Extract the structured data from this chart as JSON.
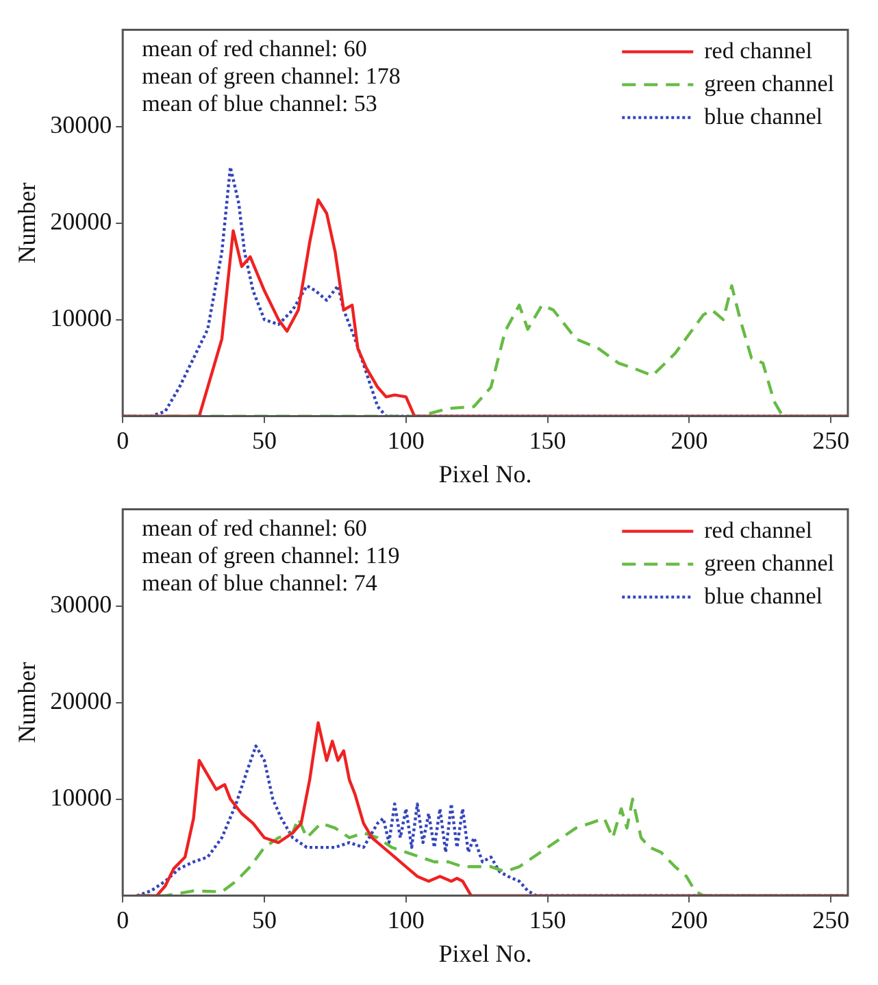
{
  "chart_data": [
    {
      "type": "line",
      "xlabel": "Pixel No.",
      "ylabel": "Number",
      "xlim": [
        0,
        256
      ],
      "ylim": [
        0,
        40000
      ],
      "xticks": [
        0,
        50,
        100,
        150,
        200,
        250
      ],
      "yticks": [
        10000,
        20000,
        30000
      ],
      "grid": false,
      "legend": "top right",
      "annotations": [
        "mean of red channel: 60",
        "mean of green channel: 178",
        "mean of blue channel: 53"
      ],
      "series": [
        {
          "name": "red channel",
          "color": "#ee2222",
          "line_style": "solid",
          "x": [
            0,
            27,
            30,
            35,
            39,
            42,
            45,
            50,
            55,
            58,
            62,
            66,
            69,
            72,
            75,
            78,
            81,
            83,
            86,
            90,
            93,
            96,
            100,
            103,
            256
          ],
          "values": [
            0,
            0,
            3000,
            8000,
            19200,
            15500,
            16500,
            13000,
            10000,
            8800,
            11000,
            18000,
            22400,
            21000,
            17000,
            11000,
            11500,
            7000,
            5000,
            3000,
            2000,
            2200,
            2000,
            0,
            0
          ]
        },
        {
          "name": "green channel",
          "color": "#66bb44",
          "line_style": "dashed",
          "x": [
            0,
            105,
            115,
            124,
            130,
            135,
            140,
            143,
            148,
            152,
            160,
            168,
            175,
            180,
            187,
            195,
            200,
            205,
            208,
            212,
            215,
            218,
            222,
            226,
            230,
            233,
            256
          ],
          "values": [
            0,
            0,
            800,
            1000,
            3000,
            8800,
            11500,
            9000,
            11500,
            11000,
            8000,
            7000,
            5500,
            5000,
            4200,
            6500,
            8500,
            10500,
            11000,
            10000,
            13500,
            10000,
            6000,
            5500,
            1500,
            0,
            0
          ]
        },
        {
          "name": "blue channel",
          "color": "#3344bb",
          "line_style": "dotted",
          "x": [
            0,
            10,
            15,
            20,
            25,
            30,
            35,
            38,
            41,
            43,
            46,
            50,
            55,
            60,
            65,
            68,
            72,
            76,
            78,
            82,
            86,
            90,
            93,
            256
          ],
          "values": [
            0,
            0,
            500,
            3000,
            6000,
            9000,
            17000,
            25800,
            22000,
            17000,
            13000,
            10000,
            9500,
            11000,
            13500,
            13000,
            12000,
            13500,
            11000,
            8000,
            4500,
            1000,
            0,
            0
          ]
        }
      ]
    },
    {
      "type": "line",
      "xlabel": "Pixel No.",
      "ylabel": "Number",
      "xlim": [
        0,
        256
      ],
      "ylim": [
        0,
        40000
      ],
      "xticks": [
        0,
        50,
        100,
        150,
        200,
        250
      ],
      "yticks": [
        10000,
        20000,
        30000
      ],
      "grid": false,
      "legend": "top right",
      "annotations": [
        "mean of red channel: 60",
        "mean of green channel: 119",
        "mean of blue channel: 74"
      ],
      "series": [
        {
          "name": "red channel",
          "color": "#ee2222",
          "line_style": "solid",
          "x": [
            5,
            12,
            15,
            18,
            22,
            25,
            27,
            30,
            33,
            36,
            38,
            42,
            46,
            50,
            55,
            60,
            63,
            66,
            69,
            72,
            74,
            76,
            78,
            80,
            82,
            85,
            88,
            92,
            96,
            100,
            104,
            108,
            112,
            116,
            118,
            120,
            123,
            256
          ],
          "values": [
            0,
            0,
            1000,
            2800,
            4000,
            8000,
            14000,
            12500,
            11000,
            11500,
            10000,
            8500,
            7500,
            6000,
            5500,
            6500,
            7500,
            12000,
            17900,
            14000,
            16000,
            14000,
            15000,
            12000,
            10500,
            7500,
            6000,
            5000,
            4000,
            3000,
            2000,
            1500,
            2000,
            1500,
            1800,
            1500,
            0,
            0
          ]
        },
        {
          "name": "green channel",
          "color": "#66bb44",
          "line_style": "dashed",
          "x": [
            5,
            15,
            25,
            35,
            40,
            45,
            50,
            55,
            60,
            62,
            65,
            70,
            75,
            80,
            85,
            90,
            95,
            100,
            105,
            110,
            115,
            120,
            125,
            130,
            135,
            140,
            145,
            150,
            155,
            160,
            165,
            170,
            173,
            176,
            178,
            180,
            183,
            186,
            190,
            195,
            199,
            202,
            205,
            256
          ],
          "values": [
            0,
            0,
            500,
            400,
            1500,
            3000,
            5000,
            6000,
            6500,
            8000,
            6000,
            7500,
            7000,
            6000,
            6500,
            6000,
            5000,
            4500,
            4000,
            3500,
            3500,
            3000,
            3000,
            3000,
            2500,
            3000,
            4000,
            5000,
            6000,
            7000,
            7500,
            8000,
            6000,
            9000,
            7000,
            10000,
            6000,
            5000,
            4500,
            3000,
            2000,
            500,
            0,
            0
          ]
        },
        {
          "name": "blue channel",
          "color": "#3344bb",
          "line_style": "dotted",
          "x": [
            5,
            10,
            15,
            20,
            25,
            30,
            35,
            40,
            44,
            47,
            50,
            53,
            56,
            60,
            65,
            70,
            75,
            80,
            85,
            88,
            90,
            92,
            94,
            96,
            98,
            100,
            102,
            104,
            106,
            108,
            110,
            112,
            114,
            116,
            118,
            120,
            122,
            124,
            127,
            130,
            133,
            136,
            140,
            143,
            146,
            256
          ],
          "values": [
            0,
            500,
            1500,
            2800,
            3500,
            4000,
            6000,
            9500,
            13000,
            15500,
            14000,
            10000,
            8000,
            6000,
            5000,
            5000,
            5000,
            5500,
            5000,
            6500,
            7500,
            8000,
            5500,
            9500,
            6000,
            9000,
            5000,
            9500,
            5500,
            8500,
            5000,
            9000,
            4500,
            9500,
            5000,
            9000,
            4500,
            6000,
            3500,
            4000,
            2500,
            2000,
            1500,
            500,
            0,
            0
          ]
        }
      ]
    }
  ]
}
